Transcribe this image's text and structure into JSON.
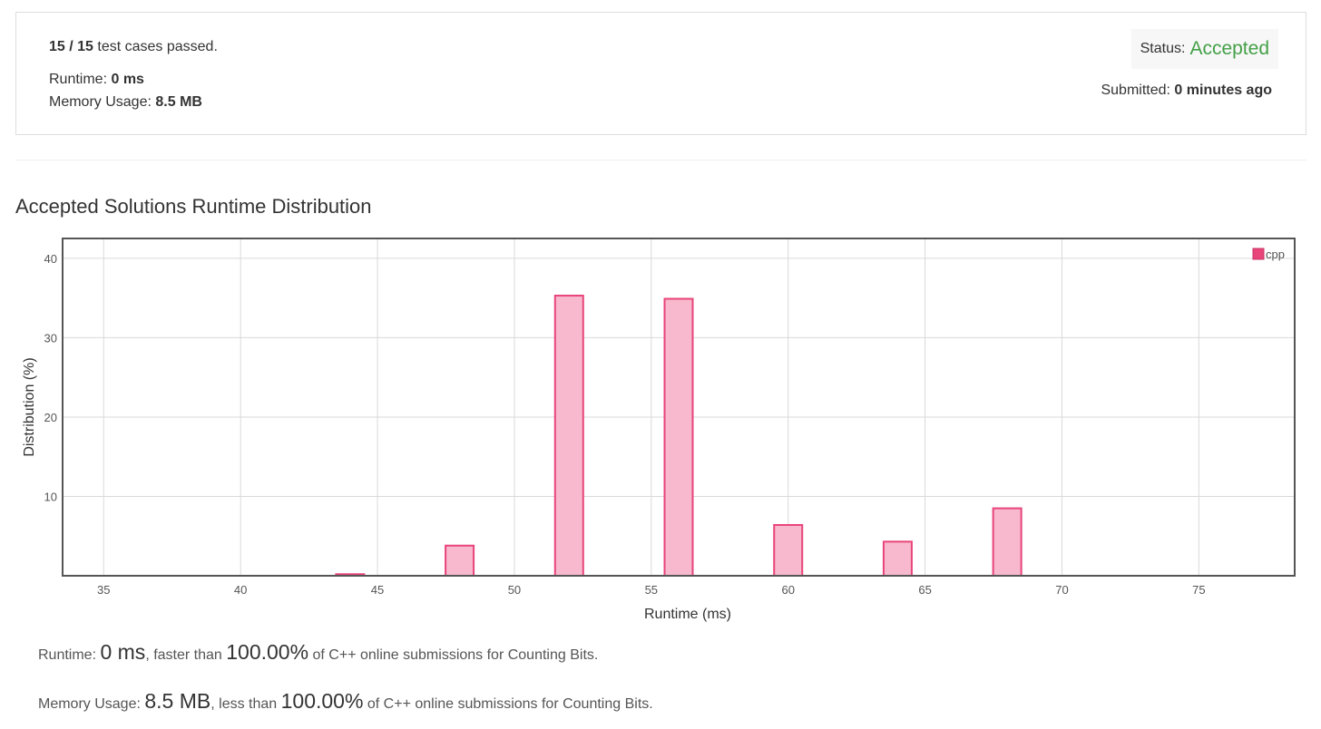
{
  "result": {
    "passed": "15 / 15",
    "passed_suffix": " test cases passed.",
    "runtime_label": "Runtime: ",
    "runtime_value": "0 ms",
    "memory_label": "Memory Usage: ",
    "memory_value": "8.5 MB",
    "status_label": "Status:",
    "status_value": "Accepted",
    "submitted_label": "Submitted: ",
    "submitted_value": "0 minutes ago"
  },
  "colors": {
    "accepted": "#43a047",
    "bar_fill": "#f8b8cd",
    "bar_stroke": "#e8457a"
  },
  "chart_title": "Accepted Solutions Runtime Distribution",
  "chart_data": {
    "type": "bar",
    "title": "",
    "xlabel": "Runtime (ms)",
    "ylabel": "Distribution (%)",
    "xlim": [
      33.5,
      78.5
    ],
    "ylim": [
      0,
      42.5
    ],
    "xticks": [
      35,
      40,
      45,
      50,
      55,
      60,
      65,
      70,
      75
    ],
    "yticks": [
      10,
      20,
      30,
      40
    ],
    "grid": true,
    "legend_position": "top-right",
    "series": [
      {
        "name": "cpp",
        "x": [
          44,
          48,
          52,
          56,
          60,
          64,
          68
        ],
        "values": [
          0.2,
          3.8,
          35.3,
          34.9,
          6.4,
          4.3,
          8.5
        ]
      }
    ]
  },
  "summary": {
    "runtime": {
      "label": "Runtime: ",
      "value": "0 ms",
      "mid": ", faster than ",
      "percent": "100.00%",
      "tail": " of C++ online submissions for Counting Bits."
    },
    "memory": {
      "label": "Memory Usage: ",
      "value": "8.5 MB",
      "mid": ", less than ",
      "percent": "100.00%",
      "tail": " of C++ online submissions for Counting Bits."
    }
  }
}
